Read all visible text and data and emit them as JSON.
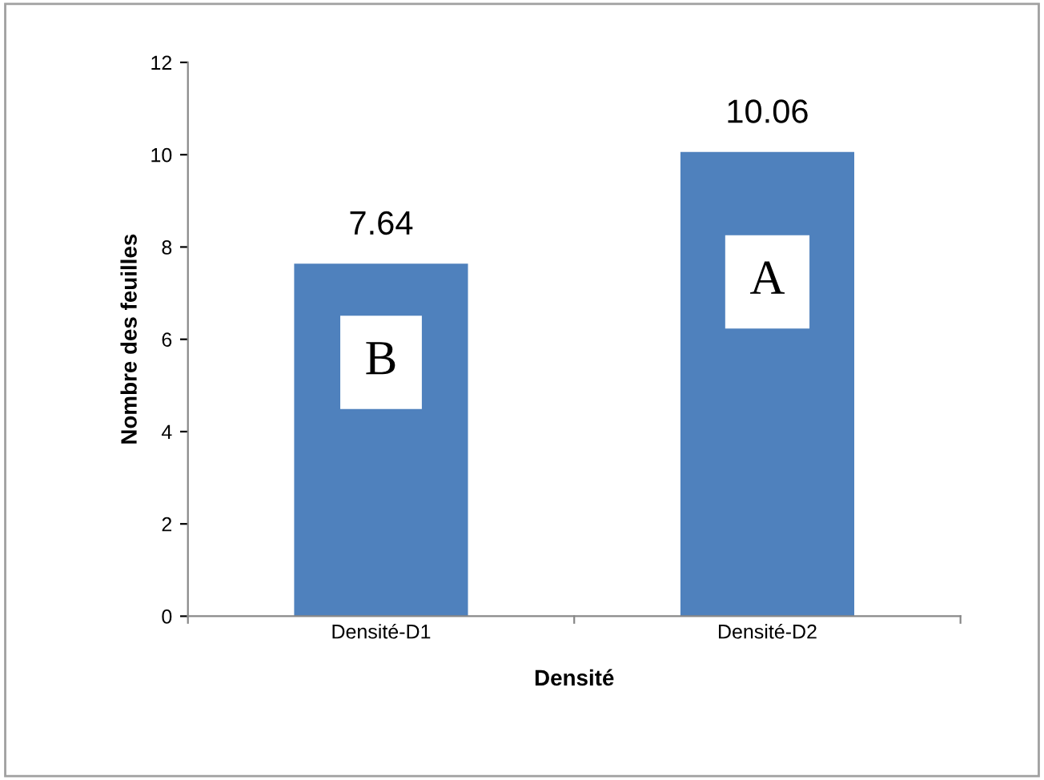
{
  "chart_data": {
    "type": "bar",
    "xlabel": "Densité",
    "ylabel": "Nombre des feuilles",
    "categories": [
      "Densité-D1",
      "Densité-D2"
    ],
    "values": [
      7.64,
      10.06
    ],
    "color": "#4f81bd",
    "ylim": [
      0,
      12
    ],
    "yticks": [
      0,
      2,
      4,
      6,
      8,
      10,
      12
    ],
    "grid": false,
    "data_labels": true,
    "annotations": [
      "B",
      "A"
    ]
  }
}
